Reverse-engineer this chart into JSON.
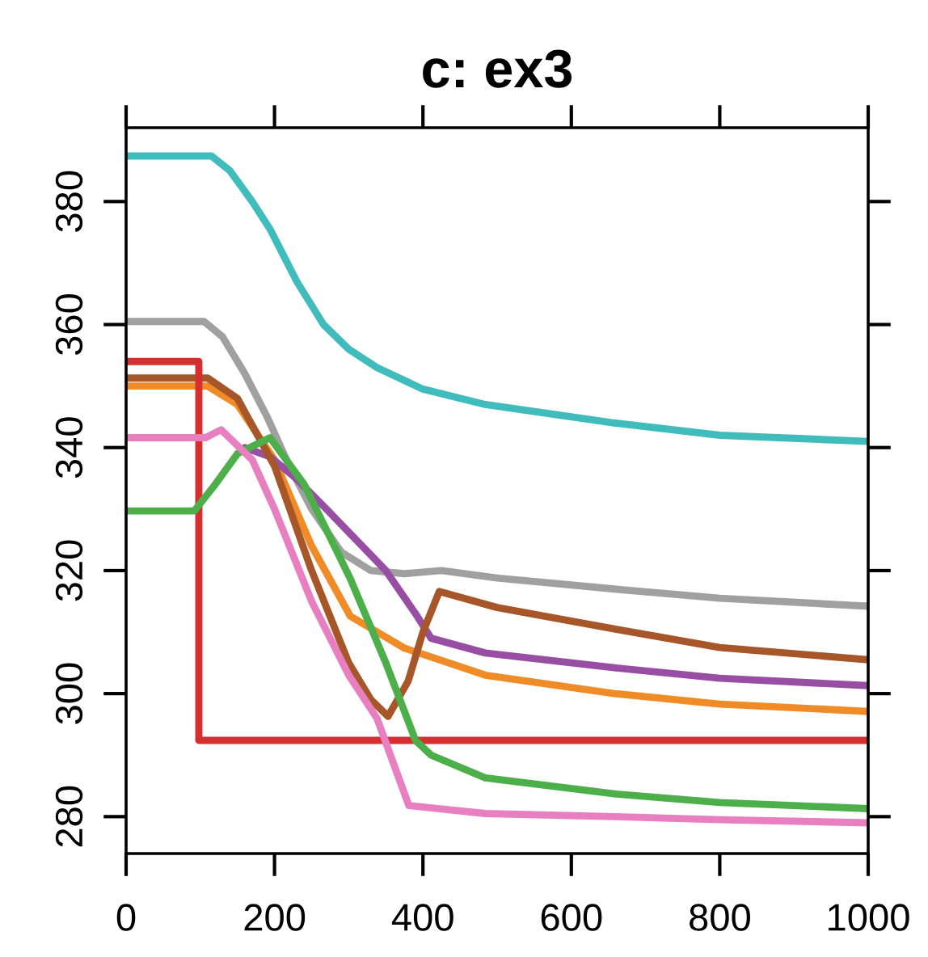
{
  "chart_data": {
    "type": "line",
    "title": "c: ex3",
    "xlim": [
      0,
      1000
    ],
    "ylim": [
      274,
      392
    ],
    "xticks": [
      0,
      200,
      400,
      600,
      800,
      1000
    ],
    "yticks": [
      280,
      300,
      320,
      340,
      360,
      380
    ],
    "grid": false,
    "marker": "none",
    "line_style": "solid",
    "series": [
      {
        "color": "#40bcbc",
        "x": [
          0,
          115,
          140,
          170,
          194,
          230,
          266,
          300,
          338,
          400,
          484,
          658,
          800,
          1000
        ],
        "values": [
          387.4,
          387.4,
          385,
          380,
          375.5,
          367,
          360,
          356,
          353,
          349.5,
          347,
          344,
          342,
          341
        ]
      },
      {
        "color": "#a0a0a0",
        "x": [
          0,
          105,
          130,
          160,
          190,
          220,
          250,
          290,
          330,
          375,
          425,
          500,
          658,
          800,
          1000
        ],
        "values": [
          360.5,
          360.5,
          358,
          352,
          345,
          337,
          330,
          323,
          320,
          319.5,
          320,
          318.8,
          317,
          315.5,
          314.2
        ]
      },
      {
        "color": "#f08c28",
        "x": [
          0,
          110,
          150,
          200,
          250,
          302,
          375,
          484,
          658,
          800,
          1000
        ],
        "values": [
          350,
          350,
          347,
          338,
          324,
          312.6,
          307.4,
          303,
          300,
          298.3,
          297.1
        ]
      },
      {
        "color": "#984ea3",
        "x": [
          160,
          194,
          229,
          270,
          310,
          350,
          390,
          411,
          484,
          658,
          800,
          1000
        ],
        "values": [
          340,
          338.5,
          335,
          330,
          325,
          320,
          313,
          309,
          306.6,
          304.2,
          302.5,
          301.3
        ]
      },
      {
        "color": "#a65628",
        "x": [
          0,
          110,
          150,
          200,
          250,
          300,
          330,
          353,
          380,
          400,
          422,
          500,
          658,
          800,
          1000
        ],
        "values": [
          351.3,
          351.3,
          348,
          337,
          320,
          305,
          299,
          296.3,
          302,
          310,
          316.6,
          314,
          310.5,
          307.5,
          305.5
        ]
      },
      {
        "color": "#d62f2f",
        "x": [
          0,
          98,
          98,
          1000
        ],
        "values": [
          354,
          354,
          292.4,
          292.4
        ]
      },
      {
        "color": "#4daf4a",
        "x": [
          0,
          92,
          120,
          150,
          194,
          240,
          302,
          350,
          390,
          411,
          484,
          658,
          800,
          1000
        ],
        "values": [
          329.7,
          329.7,
          334,
          339,
          341.6,
          334,
          318.7,
          305,
          292.4,
          290,
          286.3,
          283.7,
          282.3,
          281.3
        ]
      },
      {
        "color": "#e77fc0",
        "x": [
          0,
          107,
          128,
          170,
          200,
          250,
          300,
          338,
          381,
          484,
          658,
          800,
          1000
        ],
        "values": [
          341.6,
          341.6,
          342.9,
          338,
          330,
          315,
          303,
          296,
          281.8,
          280.5,
          280,
          279.5,
          279
        ]
      }
    ]
  }
}
